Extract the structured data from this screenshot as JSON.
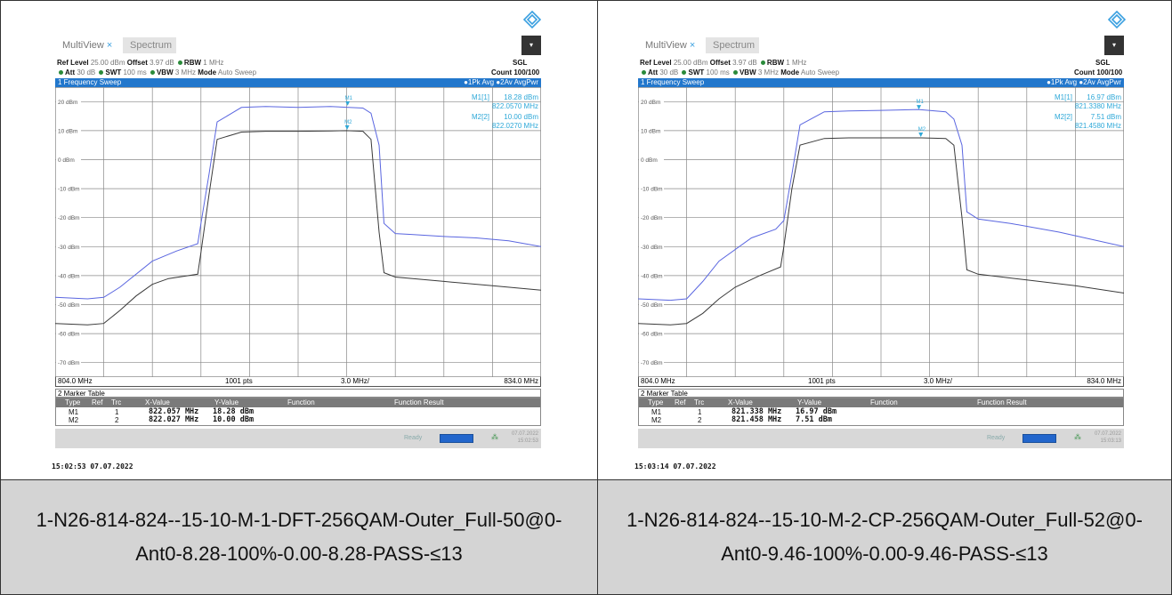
{
  "captions": [
    "1-N26-814-824--15-10-M-1-DFT-256QAM-Outer_Full-50@0-Ant0-8.28-100%-0.00-8.28-PASS-≤13",
    "1-N26-814-824--15-10-M-2-CP-256QAM-Outer_Full-52@0-Ant0-9.46-100%-0.00-9.46-PASS-≤13"
  ],
  "colors": {
    "trace_pk": "#5a66e0",
    "trace_avg": "#3a3a3a",
    "title_bar": "#2277cc",
    "marker": "#2ea8d8"
  },
  "panels": [
    {
      "tab_multiview": "MultiView",
      "tab_close": "×",
      "tab_spectrum": "Spectrum",
      "ref_level_label": "Ref Level",
      "ref_level_value": "25.00 dBm",
      "offset_label": "Offset",
      "offset_value": "3.97 dB",
      "rbw_label": "RBW",
      "rbw_value": "1 MHz",
      "att_label": "Att",
      "att_value": "30 dB",
      "swt_label": "SWT",
      "swt_value": "100 ms",
      "vbw_label": "VBW",
      "vbw_value": "3 MHz",
      "mode_label": "Mode",
      "mode_value": "Auto Sweep",
      "sgl": "SGL",
      "count": "Count 100/100",
      "sweep_title": "1 Frequency Sweep",
      "trace_legend": "●1Pk Avg ●2Av AvgPwr",
      "marker_readout": [
        {
          "label": "M1[1]",
          "y": "18.28 dBm",
          "x": "822.0570 MHz"
        },
        {
          "label": "M2[2]",
          "y": "10.00 dBm",
          "x": "822.0270 MHz"
        }
      ],
      "bottom_left": "804.0 MHz",
      "bottom_mid": "1001 pts",
      "bottom_span": "3.0 MHz/",
      "bottom_right": "834.0 MHz",
      "marker_table_title": "2 Marker Table",
      "marker_table_headers": [
        "Type",
        "Ref",
        "Trc",
        "X-Value",
        "Y-Value",
        "Function",
        "Function Result"
      ],
      "marker_table_rows": [
        {
          "type": "M1",
          "ref": "",
          "trc": "1",
          "x": "822.057 MHz",
          "y": "18.28 dBm"
        },
        {
          "type": "M2",
          "ref": "",
          "trc": "2",
          "x": "822.027 MHz",
          "y": "10.00 dBm"
        }
      ],
      "status_ready": "Ready",
      "status_date": "07.07.2022",
      "status_time": "15:02:53",
      "timestamp": "15:02:53  07.07.2022"
    },
    {
      "tab_multiview": "MultiView",
      "tab_close": "×",
      "tab_spectrum": "Spectrum",
      "ref_level_label": "Ref Level",
      "ref_level_value": "25.00 dBm",
      "offset_label": "Offset",
      "offset_value": "3.97 dB",
      "rbw_label": "RBW",
      "rbw_value": "1 MHz",
      "att_label": "Att",
      "att_value": "30 dB",
      "swt_label": "SWT",
      "swt_value": "100 ms",
      "vbw_label": "VBW",
      "vbw_value": "3 MHz",
      "mode_label": "Mode",
      "mode_value": "Auto Sweep",
      "sgl": "SGL",
      "count": "Count 100/100",
      "sweep_title": "1 Frequency Sweep",
      "trace_legend": "●1Pk Avg ●2Av AvgPwr",
      "marker_readout": [
        {
          "label": "M1[1]",
          "y": "16.97 dBm",
          "x": "821.3380 MHz"
        },
        {
          "label": "M2[2]",
          "y": "7.51 dBm",
          "x": "821.4580 MHz"
        }
      ],
      "bottom_left": "804.0 MHz",
      "bottom_mid": "1001 pts",
      "bottom_span": "3.0 MHz/",
      "bottom_right": "834.0 MHz",
      "marker_table_title": "2 Marker Table",
      "marker_table_headers": [
        "Type",
        "Ref",
        "Trc",
        "X-Value",
        "Y-Value",
        "Function",
        "Function Result"
      ],
      "marker_table_rows": [
        {
          "type": "M1",
          "ref": "",
          "trc": "1",
          "x": "821.338 MHz",
          "y": "16.97 dBm"
        },
        {
          "type": "M2",
          "ref": "",
          "trc": "2",
          "x": "821.458 MHz",
          "y": "7.51 dBm"
        }
      ],
      "status_ready": "Ready",
      "status_date": "07.07.2022",
      "status_time": "15:03:13",
      "timestamp": "15:03:14  07.07.2022"
    }
  ],
  "chart_data": [
    {
      "type": "line",
      "xlim": [
        804.0,
        834.0
      ],
      "ylim": [
        -75,
        25
      ],
      "y_ticks": [
        "20 dBm",
        "10 dBm",
        "0 dBm",
        "-10 dBm",
        "-20 dBm",
        "-30 dBm",
        "-40 dBm",
        "-50 dBm",
        "-60 dBm",
        "-70 dBm"
      ],
      "y_tick_values": [
        20,
        10,
        0,
        -10,
        -20,
        -30,
        -40,
        -50,
        -60,
        -70
      ],
      "grid": true,
      "series": [
        {
          "name": "1Pk Avg",
          "x": [
            804.0,
            806.0,
            807.0,
            808.0,
            810.0,
            811.5,
            812.8,
            813.0,
            813.5,
            814.0,
            815.5,
            817.0,
            819.0,
            821.0,
            823.0,
            823.5,
            824.0,
            824.3,
            825.0,
            826.0,
            828.0,
            830.0,
            832.0,
            834.0
          ],
          "y": [
            -47.5,
            -48,
            -47.5,
            -44,
            -35,
            -31.5,
            -29,
            -22,
            -5,
            13,
            18,
            18.3,
            18,
            18.3,
            17.8,
            16,
            5,
            -22,
            -25.5,
            -25.8,
            -26.5,
            -27,
            -28,
            -30
          ]
        },
        {
          "name": "2Av AvgPwr",
          "x": [
            804.0,
            806.0,
            807.0,
            808.0,
            809.0,
            810.0,
            811.0,
            812.8,
            813.0,
            813.5,
            814.0,
            815.5,
            817.0,
            819.0,
            821.0,
            822.0,
            823.0,
            823.5,
            824.0,
            824.3,
            825.0,
            828.0,
            831.0,
            834.0
          ],
          "y": [
            -56.5,
            -57,
            -56.5,
            -52,
            -47,
            -43,
            -41,
            -39.5,
            -32,
            -12,
            7,
            9.5,
            9.8,
            9.8,
            9.9,
            10.0,
            9.8,
            7,
            -25,
            -39,
            -40.5,
            -42,
            -43.5,
            -45
          ]
        }
      ],
      "markers": [
        {
          "name": "M1",
          "x": 822.057,
          "y": 18.28
        },
        {
          "name": "M2",
          "x": 822.027,
          "y": 10.0
        }
      ]
    },
    {
      "type": "line",
      "xlim": [
        804.0,
        834.0
      ],
      "ylim": [
        -75,
        25
      ],
      "y_ticks": [
        "20 dBm",
        "10 dBm",
        "0 dBm",
        "-10 dBm",
        "-20 dBm",
        "-30 dBm",
        "-40 dBm",
        "-50 dBm",
        "-60 dBm",
        "-70 dBm"
      ],
      "y_tick_values": [
        20,
        10,
        0,
        -10,
        -20,
        -30,
        -40,
        -50,
        -60,
        -70
      ],
      "grid": true,
      "series": [
        {
          "name": "1Pk Avg",
          "x": [
            804.0,
            806.0,
            807.0,
            808.0,
            809.0,
            811.0,
            812.5,
            813.0,
            813.5,
            814.0,
            815.5,
            817.0,
            819.0,
            821.3,
            823.0,
            823.5,
            824.0,
            824.3,
            825.0,
            827.0,
            830.0,
            834.0
          ],
          "y": [
            -48,
            -48.5,
            -48,
            -42,
            -35,
            -27,
            -24,
            -21,
            -5,
            12,
            16.5,
            16.8,
            17,
            17.3,
            16.5,
            14,
            5,
            -18,
            -20.5,
            -22,
            -25,
            -30
          ]
        },
        {
          "name": "2Av AvgPwr",
          "x": [
            804.0,
            806.0,
            807.0,
            808.0,
            809.0,
            810.0,
            811.5,
            812.8,
            813.0,
            813.5,
            814.0,
            815.5,
            817.0,
            819.0,
            821.5,
            823.0,
            823.5,
            824.0,
            824.3,
            825.0,
            828.0,
            831.0,
            834.0
          ],
          "y": [
            -56.5,
            -57,
            -56.5,
            -53,
            -48,
            -44,
            -40,
            -37,
            -30,
            -10,
            5,
            7.3,
            7.5,
            7.5,
            7.5,
            7.3,
            5,
            -20,
            -38,
            -39.5,
            -41.5,
            -43.5,
            -46
          ]
        }
      ],
      "markers": [
        {
          "name": "M1",
          "x": 821.338,
          "y": 16.97
        },
        {
          "name": "M2",
          "x": 821.458,
          "y": 7.51
        }
      ]
    }
  ]
}
